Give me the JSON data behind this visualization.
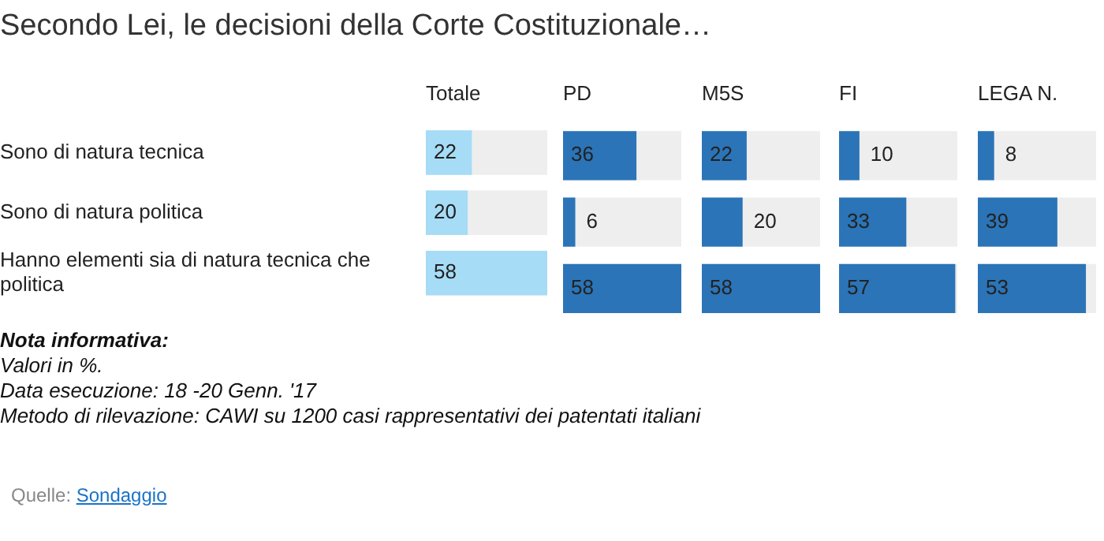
{
  "chart_data": [
    {
      "type": "bar",
      "orientation": "horizontal",
      "title": "Secondo Lei, le decisioni della Corte Costituzionale…",
      "xlabel": "Totale",
      "categories": [
        "Sono di natura tecnica",
        "Sono di natura politica",
        "Hanno elementi sia di natura tecnica che politica"
      ],
      "values": [
        22,
        20,
        58
      ],
      "color": "#a6dcf6",
      "xlim": [
        0,
        58
      ],
      "data_labels": true,
      "tick_labels": "y",
      "annotations": [
        "Nota informativa:",
        "Valori in %.",
        "Data esecuzione: 18 -20  Genn. '17",
        "Metodo di rilevazione: CAWI su 1200 casi rappresentativi dei patentati italiani",
        "Quelle: Sondaggio"
      ]
    },
    {
      "type": "bar",
      "orientation": "horizontal",
      "xlabel": "PD",
      "categories": [
        null,
        null,
        null
      ],
      "values": [
        36,
        6,
        58
      ],
      "color": "#2b74b7",
      "xlim": [
        0,
        58
      ],
      "data_labels": true,
      "tick_labels": false
    },
    {
      "type": "bar",
      "orientation": "horizontal",
      "xlabel": "M5S",
      "categories": [
        null,
        null,
        null
      ],
      "values": [
        22,
        20,
        58
      ],
      "color": "#2b74b7",
      "xlim": [
        0,
        58
      ],
      "data_labels": true,
      "tick_labels": false
    },
    {
      "type": "bar",
      "orientation": "horizontal",
      "xlabel": "FI",
      "categories": [
        null,
        null,
        null
      ],
      "values": [
        10,
        33,
        57
      ],
      "color": "#2b74b7",
      "xlim": [
        0,
        58
      ],
      "data_labels": true,
      "tick_labels": false
    },
    {
      "type": "bar",
      "orientation": "horizontal",
      "xlabel": "LEGA N.",
      "categories": [
        null,
        null,
        null
      ],
      "values": [
        8,
        39,
        53
      ],
      "color": "#2b74b7",
      "xlim": [
        0,
        58
      ],
      "data_labels": true,
      "tick_labels": false
    }
  ]
}
